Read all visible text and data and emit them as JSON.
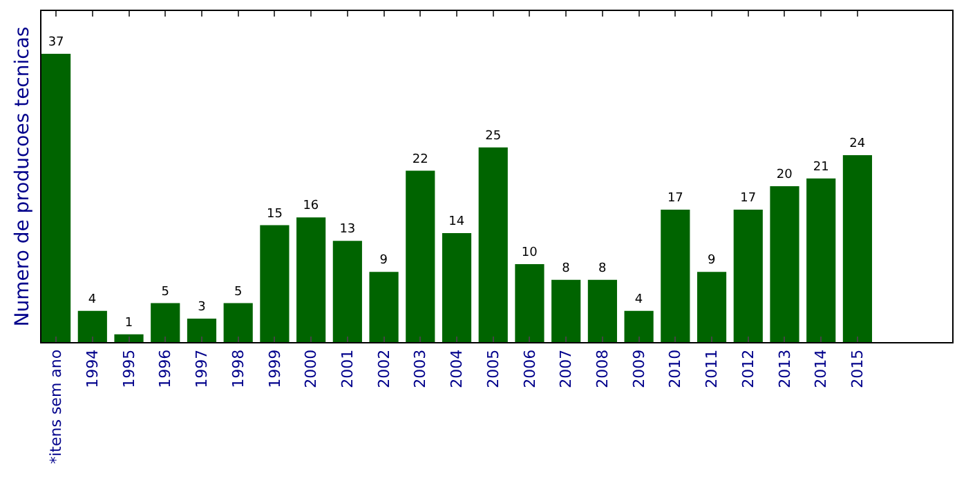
{
  "chart_data": {
    "type": "bar",
    "ylabel": "Numero de producoes tecnicas",
    "categories": [
      "*itens sem ano",
      "1994",
      "1995",
      "1996",
      "1997",
      "1998",
      "1999",
      "2000",
      "2001",
      "2002",
      "2003",
      "2004",
      "2005",
      "2006",
      "2007",
      "2008",
      "2009",
      "2010",
      "2011",
      "2012",
      "2013",
      "2014",
      "2015"
    ],
    "values": [
      37,
      4,
      1,
      5,
      3,
      5,
      15,
      16,
      13,
      9,
      22,
      14,
      25,
      10,
      8,
      8,
      4,
      17,
      9,
      17,
      20,
      21,
      24
    ],
    "color": "#006400",
    "ylim": [
      0,
      42.5
    ],
    "data_labels": true,
    "tick_labels": "x"
  }
}
